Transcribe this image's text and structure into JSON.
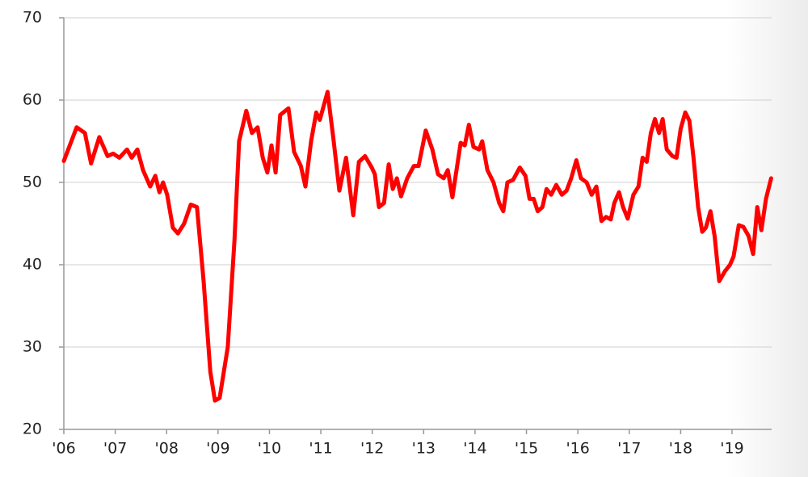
{
  "chart_data": {
    "type": "line",
    "x": [
      2006.0,
      2006.25,
      2006.41,
      2006.53,
      2006.69,
      2006.85,
      2006.96,
      2007.08,
      2007.23,
      2007.32,
      2007.43,
      2007.54,
      2007.68,
      2007.78,
      2007.86,
      2007.93,
      2008.01,
      2008.12,
      2008.22,
      2008.34,
      2008.47,
      2008.59,
      2008.72,
      2008.85,
      2008.94,
      2009.03,
      2009.19,
      2009.32,
      2009.41,
      2009.55,
      2009.66,
      2009.77,
      2009.87,
      2009.96,
      2010.04,
      2010.12,
      2010.21,
      2010.37,
      2010.48,
      2010.61,
      2010.7,
      2010.81,
      2010.91,
      2010.98,
      2011.13,
      2011.25,
      2011.36,
      2011.49,
      2011.63,
      2011.74,
      2011.86,
      2011.99,
      2012.05,
      2012.13,
      2012.23,
      2012.32,
      2012.4,
      2012.48,
      2012.56,
      2012.68,
      2012.81,
      2012.9,
      2013.04,
      2013.17,
      2013.28,
      2013.39,
      2013.47,
      2013.56,
      2013.72,
      2013.8,
      2013.88,
      2013.97,
      2014.08,
      2014.14,
      2014.24,
      2014.36,
      2014.47,
      2014.55,
      2014.63,
      2014.74,
      2014.87,
      2014.98,
      2015.06,
      2015.14,
      2015.22,
      2015.31,
      2015.39,
      2015.48,
      2015.58,
      2015.69,
      2015.78,
      2015.87,
      2015.97,
      2016.06,
      2016.17,
      2016.27,
      2016.36,
      2016.46,
      2016.55,
      2016.64,
      2016.71,
      2016.8,
      2016.88,
      2016.97,
      2017.08,
      2017.18,
      2017.26,
      2017.34,
      2017.42,
      2017.5,
      2017.58,
      2017.65,
      2017.73,
      2017.84,
      2017.92,
      2018.0,
      2018.09,
      2018.17,
      2018.25,
      2018.34,
      2018.42,
      2018.49,
      2018.58,
      2018.66,
      2018.75,
      2018.86,
      2018.96,
      2019.03,
      2019.13,
      2019.22,
      2019.32,
      2019.41,
      2019.49,
      2019.57,
      2019.66,
      2019.76
    ],
    "series": [
      {
        "color": "#ff0000",
        "values": [
          52.6,
          56.7,
          56,
          52.3,
          55.5,
          53.2,
          53.5,
          53,
          54,
          53,
          54,
          51.5,
          49.5,
          50.8,
          48.8,
          50,
          48.5,
          44.5,
          43.8,
          45,
          47.3,
          47,
          38,
          27,
          23.5,
          23.8,
          30,
          43,
          55,
          58.7,
          56,
          56.7,
          53,
          51.2,
          54.5,
          51.2,
          58.2,
          59,
          53.7,
          52,
          49.5,
          55,
          58.5,
          57.6,
          61,
          55,
          49,
          53,
          46,
          52.5,
          53.2,
          51.8,
          51,
          47,
          47.5,
          52.2,
          49.2,
          50.5,
          48.3,
          50.5,
          52,
          52,
          56.3,
          54,
          51,
          50.5,
          51.5,
          48.2,
          54.8,
          54.5,
          57,
          54.3,
          54,
          55,
          51.5,
          50,
          47.5,
          46.5,
          50,
          50.3,
          51.8,
          50.8,
          48,
          48,
          46.5,
          47,
          49.2,
          48.5,
          49.7,
          48.5,
          49,
          50.5,
          52.7,
          50.5,
          50,
          48.5,
          49.5,
          45.3,
          45.8,
          45.5,
          47.5,
          48.8,
          47,
          45.6,
          48.5,
          49.5,
          53,
          52.5,
          56,
          57.7,
          56,
          57.7,
          54,
          53.2,
          53,
          56.5,
          58.5,
          57.5,
          53,
          47,
          44,
          44.5,
          46.5,
          43.5,
          38,
          39.2,
          40,
          41,
          44.8,
          44.6,
          43.5,
          41.3,
          47,
          44.2,
          48,
          50.5
        ]
      }
    ],
    "xlim": [
      2006,
      2019.77
    ],
    "xticks": [
      {
        "value": 2006,
        "label": "'06"
      },
      {
        "value": 2007,
        "label": "'07"
      },
      {
        "value": 2008,
        "label": "'08"
      },
      {
        "value": 2009,
        "label": "'09"
      },
      {
        "value": 2010,
        "label": "'10"
      },
      {
        "value": 2011,
        "label": "'11"
      },
      {
        "value": 2012,
        "label": "'12"
      },
      {
        "value": 2013,
        "label": "'13"
      },
      {
        "value": 2014,
        "label": "'14"
      },
      {
        "value": 2015,
        "label": "'15"
      },
      {
        "value": 2016,
        "label": "'16"
      },
      {
        "value": 2017,
        "label": "'17"
      },
      {
        "value": 2018,
        "label": "'18"
      },
      {
        "value": 2019,
        "label": "'19"
      }
    ],
    "ylim": [
      20,
      70
    ],
    "yticks": [
      20,
      30,
      40,
      50,
      60,
      70
    ],
    "grid": true
  }
}
